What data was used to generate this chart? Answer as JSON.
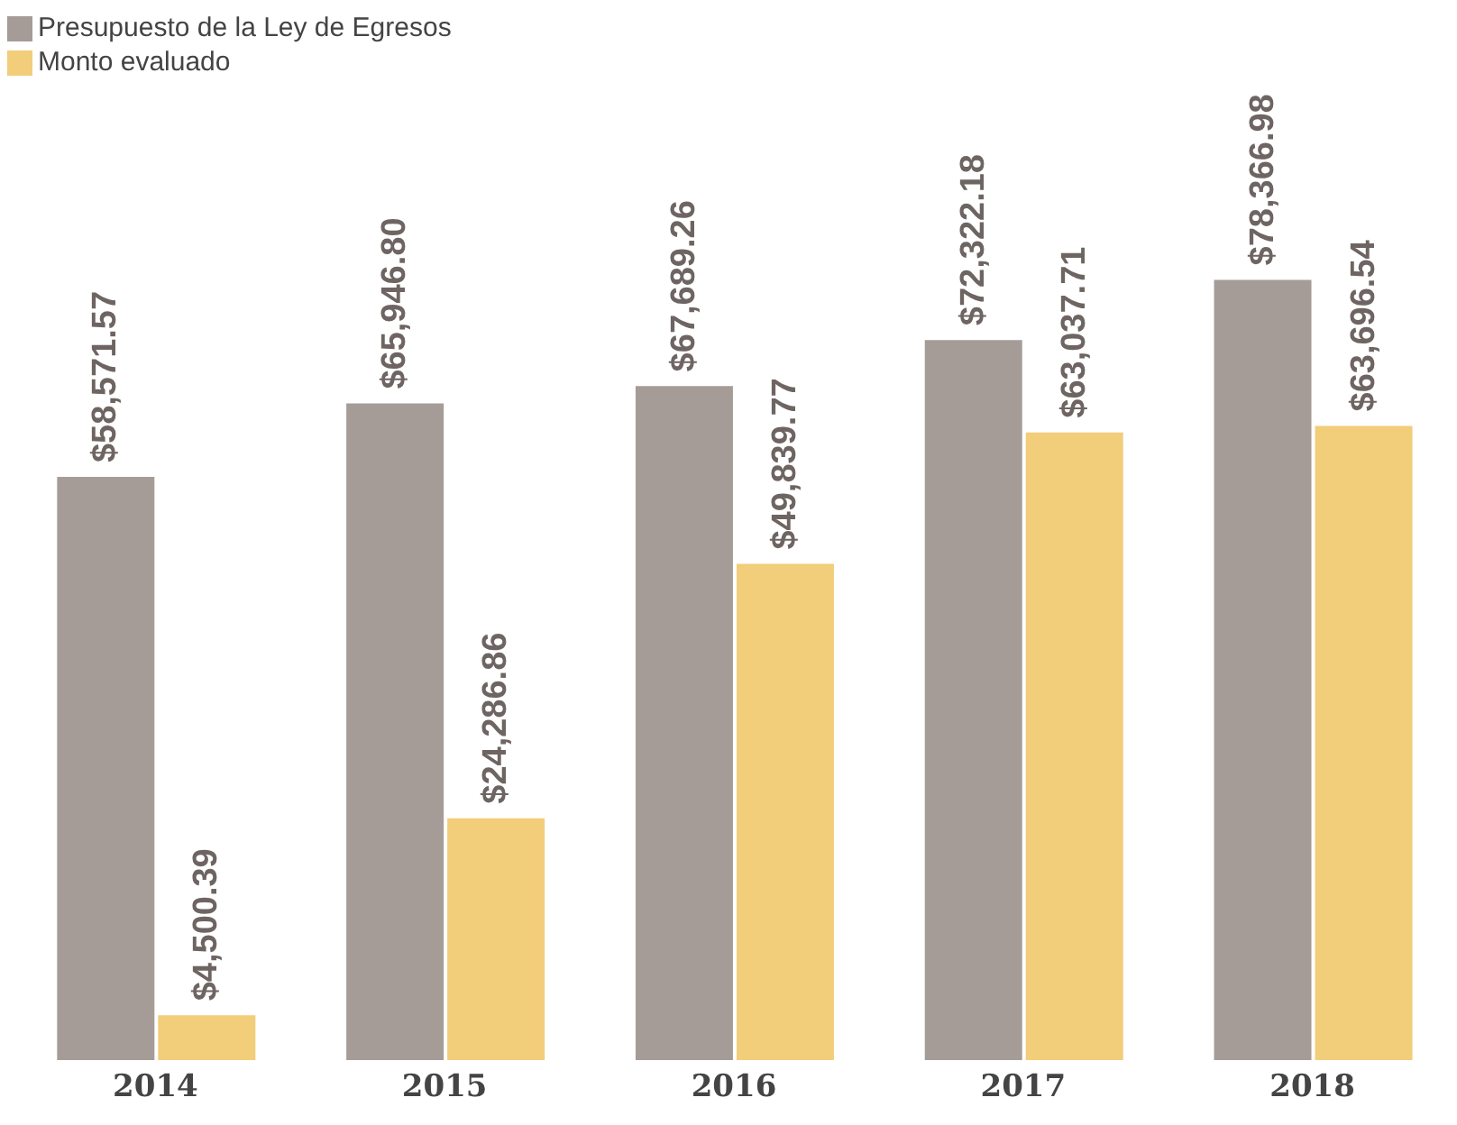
{
  "chart_data": {
    "type": "bar",
    "categories": [
      "2014",
      "2015",
      "2016",
      "2017",
      "2018"
    ],
    "legend": "top left",
    "series": [
      {
        "name": "Presupuesto de la Ley de Egresos",
        "color": "#a59c98",
        "values": [
          58571.57,
          65946.8,
          67689.26,
          72322.18,
          78366.98
        ],
        "value_labels": [
          "$58,571.57",
          "$65,946.80",
          "$67,689.26",
          "$72,322.18",
          "$78,366.98"
        ]
      },
      {
        "name": "Monto evaluado",
        "color": "#f2cd7a",
        "values": [
          4500.39,
          24286.86,
          49839.77,
          63037.71,
          63696.54
        ],
        "value_labels": [
          "$4,500.39",
          "$24,286.86",
          "$49,839.77",
          "$63,037.71",
          "$63,696.54"
        ]
      }
    ]
  }
}
